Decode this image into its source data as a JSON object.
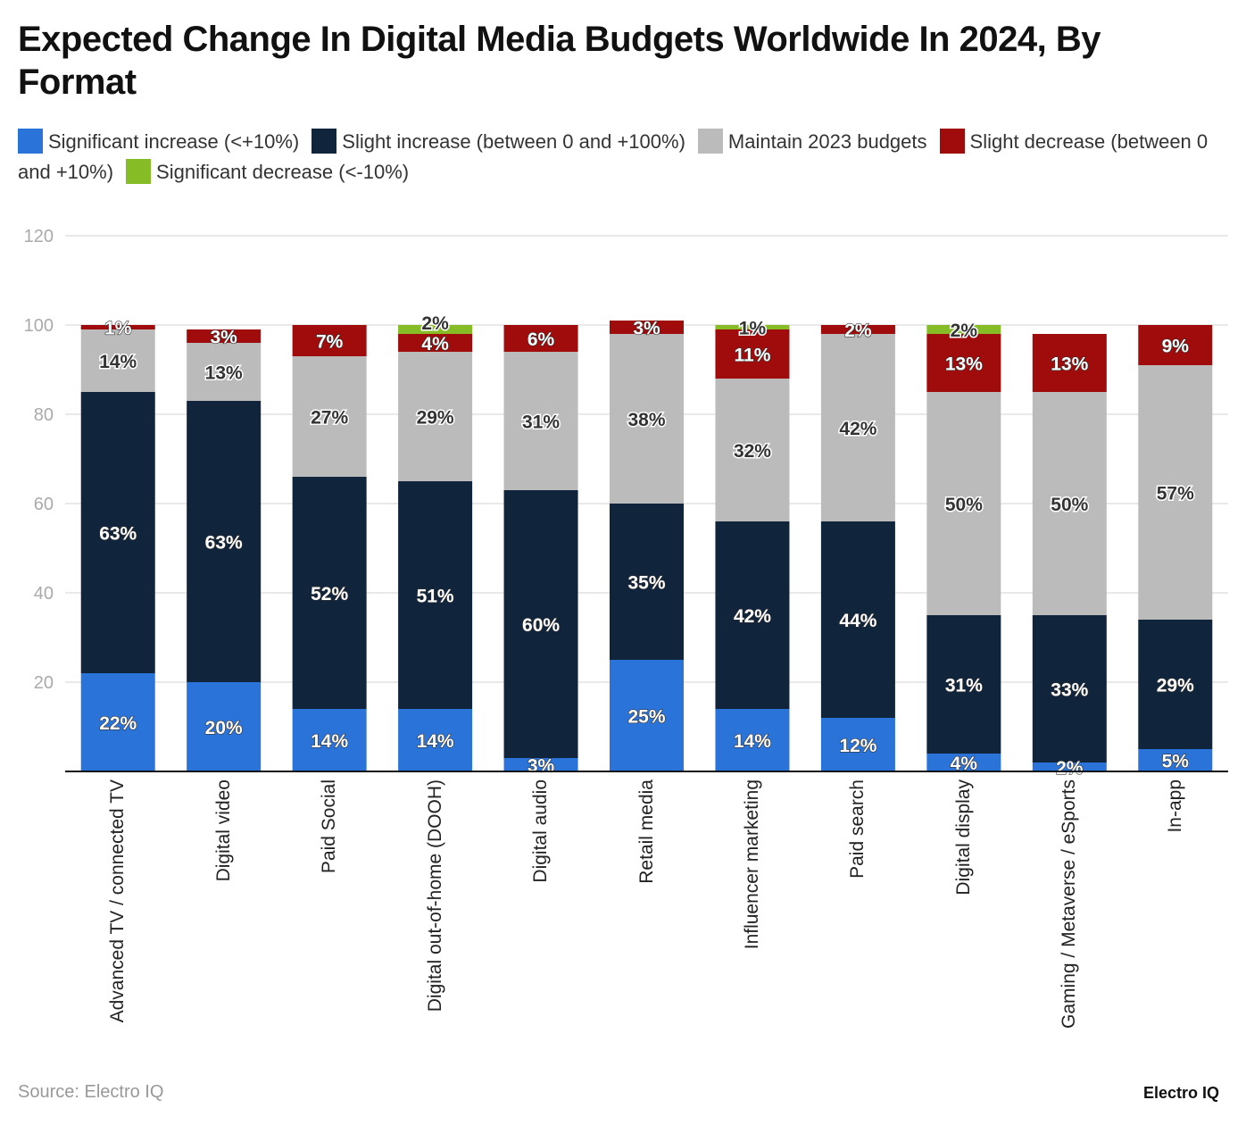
{
  "chart_data": {
    "type": "bar",
    "stacked": true,
    "title": "Expected Change In Digital Media Budgets Worldwide In 2024, By Format",
    "categories": [
      "Advanced TV / connected TV",
      "Digital video",
      "Paid Social",
      "Digital out-of-home (DOOH)",
      "Digital audio",
      "Retail media",
      "Influencer marketing",
      "Paid search",
      "Digital display",
      "Gaming / Metaverse / eSports",
      "In-app"
    ],
    "series": [
      {
        "name": "Significant increase (<+10%)",
        "color": "#2a73d9",
        "values": [
          22,
          20,
          14,
          14,
          3,
          25,
          14,
          12,
          4,
          2,
          5
        ]
      },
      {
        "name": "Slight increase (between 0 and +100%)",
        "color": "#10243b",
        "values": [
          63,
          63,
          52,
          51,
          60,
          35,
          42,
          44,
          31,
          33,
          29
        ]
      },
      {
        "name": "Maintain 2023 budgets",
        "color": "#bbbbbb",
        "values": [
          14,
          13,
          27,
          29,
          31,
          38,
          32,
          42,
          50,
          50,
          57
        ]
      },
      {
        "name": "Slight decrease (between 0 and +10%)",
        "color": "#a00b0b",
        "values": [
          1,
          3,
          7,
          4,
          6,
          3,
          11,
          2,
          13,
          13,
          9
        ]
      },
      {
        "name": "Significant decrease (<-10%)",
        "color": "#86bc25",
        "values": [
          0,
          0,
          0,
          2,
          0,
          0,
          1,
          0,
          2,
          0,
          0
        ]
      }
    ],
    "ylim": [
      0,
      120
    ],
    "yticks": [
      20,
      40,
      60,
      80,
      100,
      120
    ],
    "grid": true,
    "legend": "top",
    "value_suffix": "%"
  },
  "source": "Source: Electro IQ",
  "brand": "Electro IQ"
}
